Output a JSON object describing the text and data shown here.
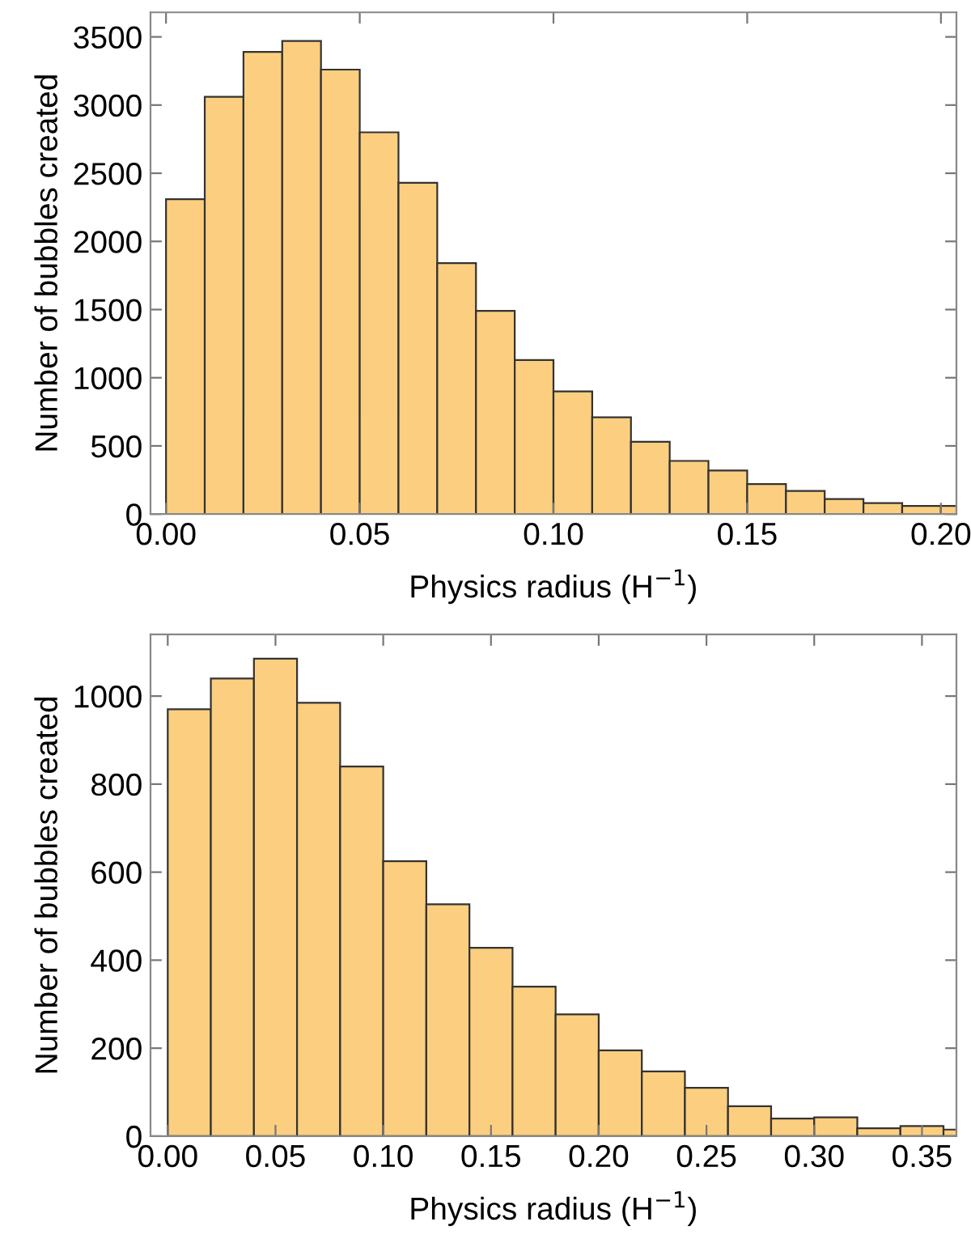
{
  "chart_data": [
    {
      "type": "histogram",
      "xlabel": "Physics radius (H$^{−1}$)",
      "ylabel": "Number of bubbles created",
      "color": "#fccf80",
      "bins": [
        0,
        0.01,
        0.02,
        0.03,
        0.04,
        0.05,
        0.06,
        0.07,
        0.08,
        0.09,
        0.1,
        0.11,
        0.12,
        0.13,
        0.14,
        0.15,
        0.16,
        0.17,
        0.18,
        0.19,
        0.2,
        0.21
      ],
      "values": [
        2310,
        3060,
        3390,
        3470,
        3260,
        2800,
        2430,
        1840,
        1490,
        1130,
        900,
        710,
        530,
        390,
        320,
        220,
        170,
        110,
        80,
        60,
        60
      ],
      "xlim": [
        -0.004,
        0.204
      ],
      "ylim": [
        0,
        3680
      ],
      "xticks": [
        {
          "value": 0,
          "label": "0.00"
        },
        {
          "value": 0.05,
          "label": "0.05"
        },
        {
          "value": 0.1,
          "label": "0.10"
        },
        {
          "value": 0.15,
          "label": "0.15"
        },
        {
          "value": 0.2,
          "label": "0.20"
        }
      ],
      "yticks": [
        0,
        500,
        1000,
        1500,
        2000,
        2500,
        3000,
        3500
      ],
      "grid": false
    },
    {
      "type": "histogram",
      "xlabel": "Physics radius (H$^{−1}$)",
      "ylabel": "Number of bubbles created",
      "color": "#fccf80",
      "bins": [
        0,
        0.02,
        0.04,
        0.06,
        0.08,
        0.1,
        0.12,
        0.14,
        0.16,
        0.18,
        0.2,
        0.22,
        0.24,
        0.26,
        0.28,
        0.3,
        0.32,
        0.34,
        0.36,
        0.38
      ],
      "values": [
        970,
        1040,
        1085,
        985,
        840,
        625,
        527,
        428,
        340,
        277,
        195,
        147,
        110,
        68,
        40,
        43,
        18,
        23,
        15
      ],
      "xlim": [
        -0.008,
        0.366
      ],
      "ylim": [
        0,
        1140
      ],
      "xticks": [
        {
          "value": 0,
          "label": "0.00"
        },
        {
          "value": 0.05,
          "label": "0.05"
        },
        {
          "value": 0.1,
          "label": "0.10"
        },
        {
          "value": 0.15,
          "label": "0.15"
        },
        {
          "value": 0.2,
          "label": "0.20"
        },
        {
          "value": 0.25,
          "label": "0.25"
        },
        {
          "value": 0.3,
          "label": "0.30"
        },
        {
          "value": 0.35,
          "label": "0.35"
        }
      ],
      "yticks": [
        0,
        200,
        400,
        600,
        800,
        1000
      ],
      "grid": false
    }
  ]
}
